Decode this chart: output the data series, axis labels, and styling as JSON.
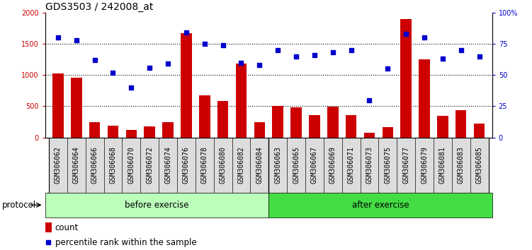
{
  "title": "GDS3503 / 242008_at",
  "categories": [
    "GSM306062",
    "GSM306064",
    "GSM306066",
    "GSM306068",
    "GSM306070",
    "GSM306072",
    "GSM306074",
    "GSM306076",
    "GSM306078",
    "GSM306080",
    "GSM306082",
    "GSM306084",
    "GSM306063",
    "GSM306065",
    "GSM306067",
    "GSM306069",
    "GSM306071",
    "GSM306073",
    "GSM306075",
    "GSM306077",
    "GSM306079",
    "GSM306081",
    "GSM306083",
    "GSM306085"
  ],
  "bar_values": [
    1020,
    960,
    250,
    190,
    120,
    175,
    240,
    1670,
    680,
    580,
    1180,
    240,
    500,
    480,
    360,
    490,
    360,
    80,
    165,
    1900,
    1250,
    350,
    440,
    220
  ],
  "percentile_values": [
    80,
    78,
    62,
    52,
    40,
    56,
    59,
    84,
    75,
    74,
    60,
    58,
    70,
    65,
    66,
    68,
    70,
    30,
    55,
    83,
    80,
    63,
    70,
    65
  ],
  "n_before": 12,
  "n_after": 12,
  "group_labels": [
    "before exercise",
    "after exercise"
  ],
  "group_colors": [
    "#BBFFBB",
    "#44DD44"
  ],
  "bar_color": "#CC0000",
  "dot_color": "#0000CC",
  "ylim_left": [
    0,
    2000
  ],
  "ylim_right": [
    0,
    100
  ],
  "yticks_left": [
    0,
    500,
    1000,
    1500,
    2000
  ],
  "yticks_right": [
    0,
    25,
    50,
    75,
    100
  ],
  "ytick_labels_left": [
    "0",
    "500",
    "1000",
    "1500",
    "2000"
  ],
  "ytick_labels_right": [
    "0",
    "25",
    "50",
    "75",
    "100%"
  ],
  "hgrid_vals": [
    500,
    1000,
    1500
  ],
  "protocol_label": "protocol",
  "legend_count": "count",
  "legend_percentile": "percentile rank within the sample",
  "title_fontsize": 10,
  "tick_fontsize": 7,
  "label_fontsize": 8.5,
  "bg_color": "#DDDDDD"
}
